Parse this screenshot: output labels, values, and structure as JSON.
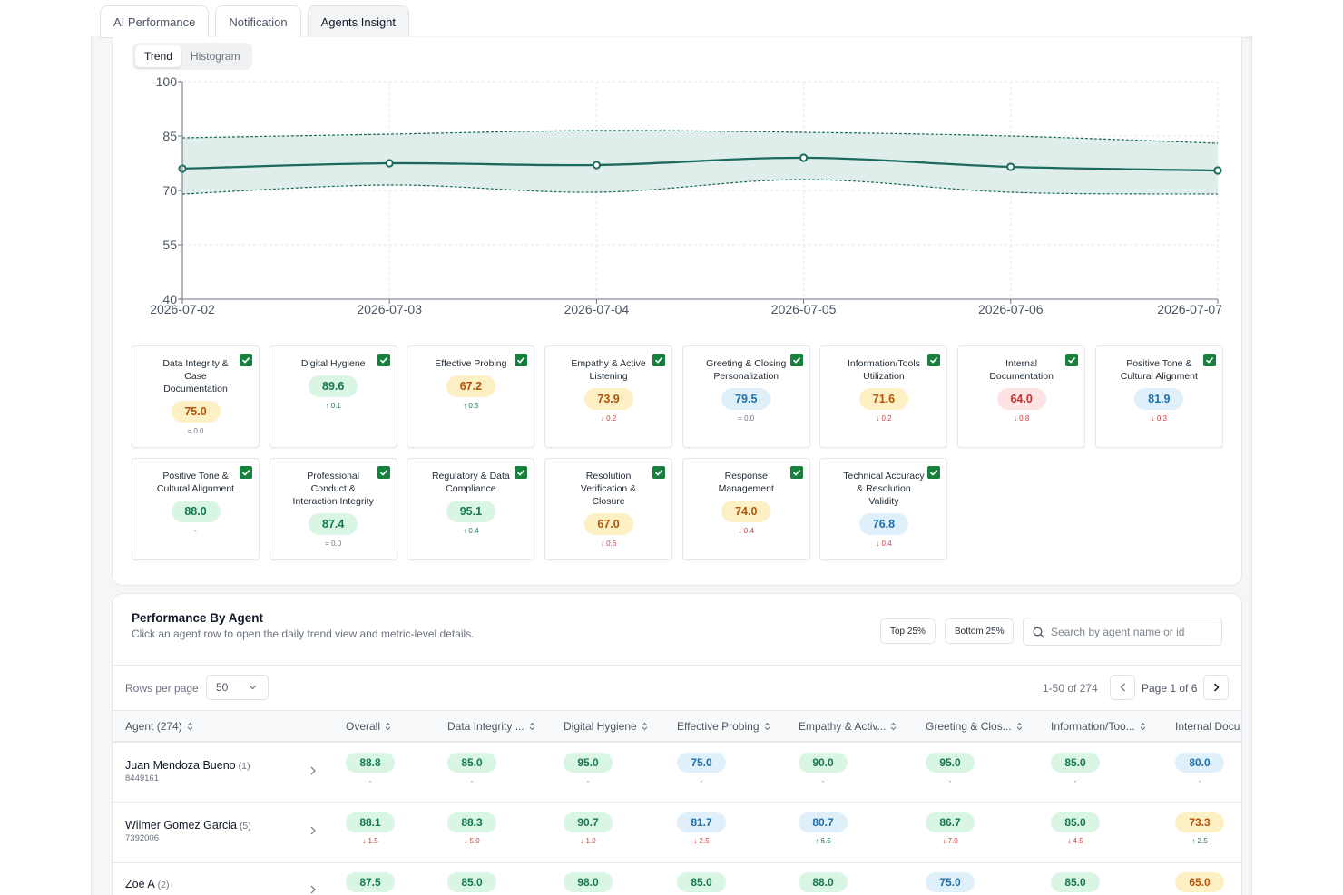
{
  "tabs": [
    {
      "label": "AI Performance",
      "active": false
    },
    {
      "label": "Notification",
      "active": false
    },
    {
      "label": "Agents Insight",
      "active": true
    }
  ],
  "view_toggle": {
    "trend": "Trend",
    "histogram": "Histogram",
    "selected": "Trend"
  },
  "chart_data": {
    "type": "line",
    "x": [
      "2026-07-02",
      "2026-07-03",
      "2026-07-04",
      "2026-07-05",
      "2026-07-06",
      "2026-07-07"
    ],
    "series": [
      {
        "role": "mean",
        "values": [
          76.0,
          77.5,
          77.0,
          79.0,
          76.5,
          75.5
        ]
      },
      {
        "role": "upper-band",
        "values": [
          84.5,
          85.5,
          86.5,
          86.0,
          85.0,
          83.0
        ]
      },
      {
        "role": "lower-band",
        "values": [
          69.0,
          71.5,
          69.5,
          73.0,
          69.5,
          69.0
        ]
      }
    ],
    "ylim": [
      40,
      100
    ],
    "yticks": [
      40,
      55,
      70,
      85,
      100
    ],
    "grid": true,
    "colors": {
      "line": "#1a6b5e",
      "band": "#dfedeb"
    }
  },
  "metrics": [
    {
      "name": "Data Integrity & Case Documentation",
      "value": "75.0",
      "tone": "yellow",
      "delta": "= 0.0",
      "trend": "flat"
    },
    {
      "name": "Digital Hygiene",
      "value": "89.6",
      "tone": "green",
      "delta": "↑ 0.1",
      "trend": "up"
    },
    {
      "name": "Effective Probing",
      "value": "67.2",
      "tone": "yellow",
      "delta": "↑ 0.5",
      "trend": "up"
    },
    {
      "name": "Empathy & Active Listening",
      "value": "73.9",
      "tone": "yellow",
      "delta": "↓ 0.2",
      "trend": "down"
    },
    {
      "name": "Greeting & Closing Personalization",
      "value": "79.5",
      "tone": "blue",
      "delta": "= 0.0",
      "trend": "flat"
    },
    {
      "name": "Information/Tools Utilization",
      "value": "71.6",
      "tone": "yellow",
      "delta": "↓ 0.2",
      "trend": "down"
    },
    {
      "name": "Internal Documentation",
      "value": "64.0",
      "tone": "red",
      "delta": "↓ 0.8",
      "trend": "down"
    },
    {
      "name": "Positive Tone & Cultural Alignment",
      "value": "81.9",
      "tone": "blue",
      "delta": "↓ 0.3",
      "trend": "down"
    },
    {
      "name": "Positive Tone & Cultural Alignment",
      "value": "88.0",
      "tone": "green",
      "delta": "-",
      "trend": "flat"
    },
    {
      "name": "Professional Conduct & Interaction Integrity",
      "value": "87.4",
      "tone": "green",
      "delta": "= 0.0",
      "trend": "flat"
    },
    {
      "name": "Regulatory & Data Compliance",
      "value": "95.1",
      "tone": "green",
      "delta": "↑ 0.4",
      "trend": "up"
    },
    {
      "name": "Resolution Verification & Closure",
      "value": "67.0",
      "tone": "yellow",
      "delta": "↓ 0.6",
      "trend": "down"
    },
    {
      "name": "Response Management",
      "value": "74.0",
      "tone": "yellow",
      "delta": "↓ 0.4",
      "trend": "down"
    },
    {
      "name": "Technical Accuracy & Resolution Validity",
      "value": "76.8",
      "tone": "blue",
      "delta": "↓ 0.4",
      "trend": "down"
    }
  ],
  "performance": {
    "title": "Performance By Agent",
    "subtitle": "Click an agent row to open the daily trend view and metric-level details.",
    "top_filter": "Top 25%",
    "bottom_filter": "Bottom 25%",
    "search_placeholder": "Search by agent name or id",
    "rows_per_page_label": "Rows per page",
    "rows_per_page": "50",
    "range": "1-50 of 274",
    "page": "Page 1 of 6",
    "columns": [
      "Agent (274)",
      "Overall",
      "Data Integrity ...",
      "Digital Hygiene",
      "Effective Probing",
      "Empathy & Activ...",
      "Greeting & Clos...",
      "Information/Too...",
      "Internal Docu"
    ],
    "rows": [
      {
        "name": "Juan Mendoza Bueno",
        "count": "(1)",
        "id": "8449161",
        "cells": [
          {
            "value": "88.8",
            "tone": "green",
            "delta": "-",
            "trend": "flat"
          },
          {
            "value": "85.0",
            "tone": "green",
            "delta": "-",
            "trend": "flat"
          },
          {
            "value": "95.0",
            "tone": "green",
            "delta": "-",
            "trend": "flat"
          },
          {
            "value": "75.0",
            "tone": "blue",
            "delta": "-",
            "trend": "flat"
          },
          {
            "value": "90.0",
            "tone": "green",
            "delta": "-",
            "trend": "flat"
          },
          {
            "value": "95.0",
            "tone": "green",
            "delta": "-",
            "trend": "flat"
          },
          {
            "value": "85.0",
            "tone": "green",
            "delta": "-",
            "trend": "flat"
          },
          {
            "value": "80.0",
            "tone": "blue",
            "delta": "-",
            "trend": "flat"
          }
        ]
      },
      {
        "name": "Wilmer Gomez Garcia",
        "count": "(5)",
        "id": "7392006",
        "cells": [
          {
            "value": "88.1",
            "tone": "green",
            "delta": "↓ 1.5",
            "trend": "down"
          },
          {
            "value": "88.3",
            "tone": "green",
            "delta": "↓ 5.0",
            "trend": "down"
          },
          {
            "value": "90.7",
            "tone": "green",
            "delta": "↓ 1.0",
            "trend": "down"
          },
          {
            "value": "81.7",
            "tone": "blue",
            "delta": "↓ 2.5",
            "trend": "down"
          },
          {
            "value": "80.7",
            "tone": "blue",
            "delta": "↑ 6.5",
            "trend": "up"
          },
          {
            "value": "86.7",
            "tone": "green",
            "delta": "↓ 7.0",
            "trend": "down"
          },
          {
            "value": "85.0",
            "tone": "green",
            "delta": "↓ 4.5",
            "trend": "down"
          },
          {
            "value": "73.3",
            "tone": "yellow",
            "delta": "↑ 2.5",
            "trend": "up"
          }
        ]
      },
      {
        "name": "Zoe A",
        "count": "(2)",
        "id": "",
        "cells": [
          {
            "value": "87.5",
            "tone": "green",
            "delta": "",
            "trend": "flat"
          },
          {
            "value": "85.0",
            "tone": "green",
            "delta": "",
            "trend": "flat"
          },
          {
            "value": "98.0",
            "tone": "green",
            "delta": "",
            "trend": "flat"
          },
          {
            "value": "85.0",
            "tone": "green",
            "delta": "",
            "trend": "flat"
          },
          {
            "value": "88.0",
            "tone": "green",
            "delta": "",
            "trend": "flat"
          },
          {
            "value": "75.0",
            "tone": "blue",
            "delta": "",
            "trend": "flat"
          },
          {
            "value": "85.0",
            "tone": "green",
            "delta": "",
            "trend": "flat"
          },
          {
            "value": "65.0",
            "tone": "yellow",
            "delta": "",
            "trend": "flat"
          }
        ]
      }
    ]
  }
}
